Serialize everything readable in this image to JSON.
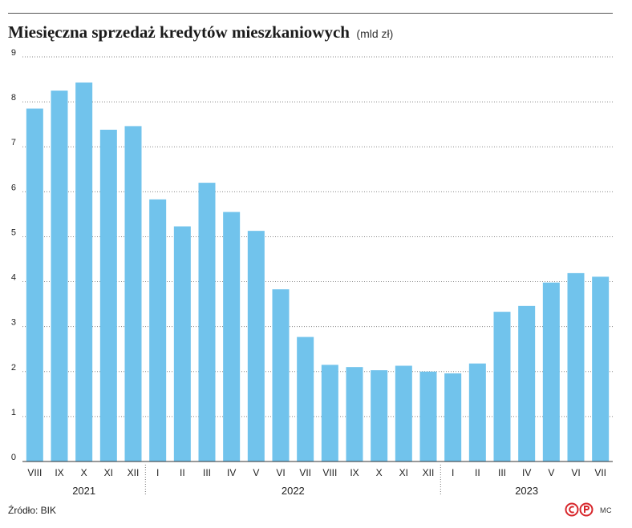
{
  "header": {
    "title": "Miesięczna sprzedaż kredytów mieszkaniowych",
    "unit": "(mld zł)"
  },
  "chart_data": {
    "type": "bar",
    "title": "Miesięczna sprzedaż kredytów mieszkaniowych",
    "subtitle": "(mld zł)",
    "xlabel": "",
    "ylabel": "",
    "ylim": [
      0,
      9
    ],
    "yticks": [
      "0",
      "1",
      "2",
      "3",
      "4",
      "5",
      "6",
      "7",
      "8",
      "9"
    ],
    "grid": true,
    "bar_color": "#71c3ec",
    "categories": [
      "VIII",
      "IX",
      "X",
      "XI",
      "XII",
      "I",
      "II",
      "III",
      "IV",
      "V",
      "VI",
      "VII",
      "VIII",
      "IX",
      "X",
      "XI",
      "XII",
      "I",
      "II",
      "III",
      "IV",
      "V",
      "VI",
      "VII"
    ],
    "values": [
      7.85,
      8.25,
      8.43,
      7.38,
      7.46,
      5.83,
      5.23,
      6.2,
      5.55,
      5.13,
      3.83,
      2.77,
      2.15,
      2.1,
      2.03,
      2.13,
      2.0,
      1.96,
      2.18,
      3.33,
      3.46,
      3.98,
      4.19,
      4.11
    ],
    "year_groups": [
      {
        "label": "2021",
        "count": 5
      },
      {
        "label": "2022",
        "count": 12
      },
      {
        "label": "2023",
        "count": 7
      }
    ]
  },
  "footer": {
    "source": "Źródło: BIK",
    "credit": "MC",
    "logo": "rp-logo"
  }
}
